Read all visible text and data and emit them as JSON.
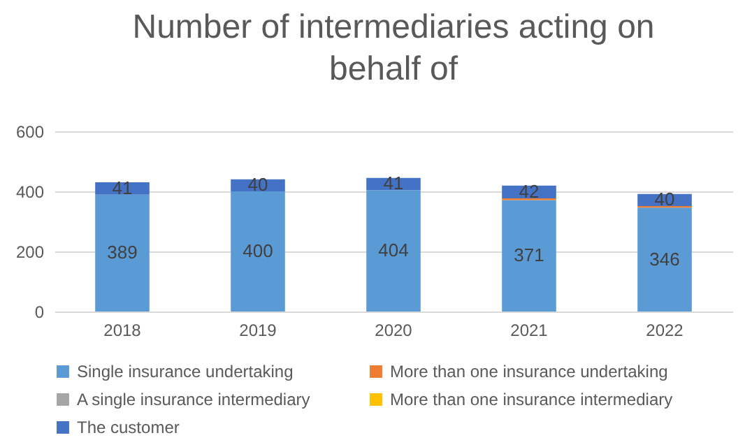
{
  "chart_data": {
    "type": "bar",
    "title": "Number of intermediaries acting on behalf of",
    "stacked": true,
    "categories": [
      "2018",
      "2019",
      "2020",
      "2021",
      "2022"
    ],
    "series": [
      {
        "name": "Single insurance undertaking",
        "color": "#5b9bd5",
        "values": [
          389,
          400,
          404,
          371,
          346
        ],
        "value_labels": [
          "389",
          "400",
          "404",
          "371",
          "346"
        ]
      },
      {
        "name": "More than one insurance undertaking",
        "color": "#ed7d31",
        "values": [
          0,
          0,
          0,
          6,
          5
        ]
      },
      {
        "name": "A single insurance intermediary",
        "color": "#a5a5a5",
        "values": [
          0,
          0,
          0,
          0,
          0
        ]
      },
      {
        "name": "More than one insurance intermediary",
        "color": "#ffc000",
        "values": [
          0,
          0,
          0,
          0,
          0
        ]
      },
      {
        "name": "The customer",
        "color": "#4472c4",
        "values": [
          41,
          40,
          41,
          42,
          40
        ],
        "value_labels": [
          "41",
          "40",
          "41",
          "42",
          "40"
        ]
      }
    ],
    "ylim": [
      0,
      600
    ],
    "yticks": [
      0,
      200,
      400,
      600
    ],
    "grid": "y",
    "legend": "bottom"
  }
}
